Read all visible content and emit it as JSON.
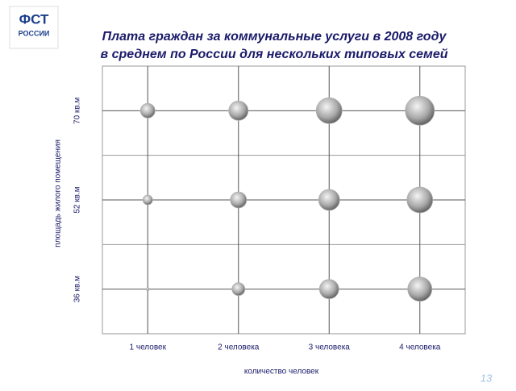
{
  "logo": {
    "line1": "ФСТ",
    "line2": "РОССИИ"
  },
  "page_number": "13",
  "chart_data": {
    "type": "bubble",
    "title": [
      "Плата граждан за коммунальные услуги в 2008 году",
      "в среднем по России для нескольких типовых семей"
    ],
    "x_label": "количество человек",
    "y_label": "площадь жилого помещения",
    "x_categories": [
      "1 человек",
      "2 человека",
      "3 человека",
      "4 человека"
    ],
    "y_categories": [
      "36 кв.м",
      "52 кв.м",
      "70 кв.м"
    ],
    "sizes": [
      [
        2,
        8,
        12,
        15
      ],
      [
        6,
        10,
        13,
        16
      ],
      [
        9,
        12,
        16,
        18
      ]
    ],
    "color": "#b0b0b0",
    "grid": true
  }
}
